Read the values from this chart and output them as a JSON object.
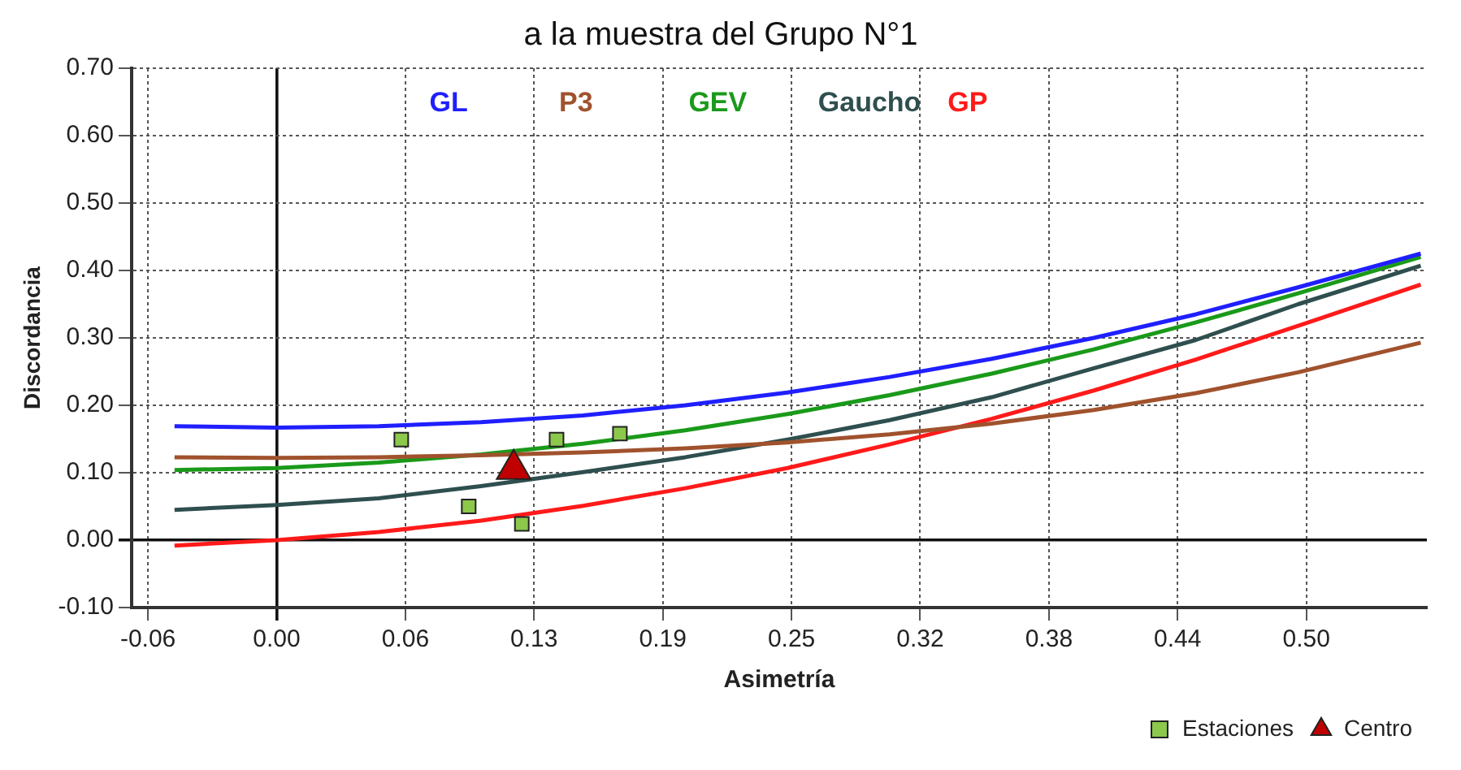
{
  "chart_data": {
    "type": "line",
    "title": "a la muestra del Grupo N°1",
    "xlabel": "Asimetría",
    "ylabel": "Discordancia",
    "xlim": [
      -0.071,
      0.563
    ],
    "ylim": [
      -0.1,
      0.7
    ],
    "xticks": [
      {
        "value": -0.063,
        "label": "-0.06"
      },
      {
        "value": 0,
        "label": "0.00"
      },
      {
        "value": 0.063,
        "label": "0.06"
      },
      {
        "value": 0.126,
        "label": "0.13"
      },
      {
        "value": 0.189,
        "label": "0.19"
      },
      {
        "value": 0.252,
        "label": "0.25"
      },
      {
        "value": 0.315,
        "label": "0.32"
      },
      {
        "value": 0.378,
        "label": "0.38"
      },
      {
        "value": 0.441,
        "label": "0.44"
      },
      {
        "value": 0.504,
        "label": "0.50"
      }
    ],
    "yticks": [
      {
        "value": -0.1,
        "label": "-0.10"
      },
      {
        "value": 0,
        "label": "0.00"
      },
      {
        "value": 0.1,
        "label": "0.10"
      },
      {
        "value": 0.2,
        "label": "0.20"
      },
      {
        "value": 0.3,
        "label": "0.30"
      },
      {
        "value": 0.4,
        "label": "0.40"
      },
      {
        "value": 0.5,
        "label": "0.50"
      },
      {
        "value": 0.6,
        "label": "0.60"
      },
      {
        "value": 0.7,
        "label": "0.70"
      }
    ],
    "grid": true,
    "legend": "bottom right",
    "line_style": "solid",
    "x": [
      -0.05,
      0,
      0.05,
      0.1,
      0.15,
      0.2,
      0.25,
      0.3,
      0.35,
      0.4,
      0.45,
      0.5,
      0.56
    ],
    "series": [
      {
        "name": "GL",
        "type": "line",
        "marker": "none",
        "color": "#1f1fff",
        "values": [
          0.169,
          0.167,
          0.169,
          0.175,
          0.185,
          0.2,
          0.219,
          0.242,
          0.269,
          0.3,
          0.335,
          0.375,
          0.425
        ]
      },
      {
        "name": "P3",
        "type": "line",
        "marker": "none",
        "color": "#a0522d",
        "values": [
          0.123,
          0.122,
          0.123,
          0.126,
          0.13,
          0.136,
          0.145,
          0.157,
          0.173,
          0.193,
          0.218,
          0.249,
          0.293
        ]
      },
      {
        "name": "GEV",
        "type": "line",
        "marker": "none",
        "color": "#1a9a1a",
        "values": [
          0.104,
          0.107,
          0.115,
          0.127,
          0.143,
          0.163,
          0.187,
          0.215,
          0.247,
          0.283,
          0.323,
          0.366,
          0.42
        ]
      },
      {
        "name": "Gaucho",
        "type": "line",
        "marker": "none",
        "color": "#2f4f4f",
        "values": [
          0.045,
          0.052,
          0.062,
          0.08,
          0.101,
          0.123,
          0.149,
          0.178,
          0.212,
          0.255,
          0.297,
          0.35,
          0.407
        ]
      },
      {
        "name": "GP",
        "type": "line",
        "marker": "none",
        "color": "#ff1a1a",
        "values": [
          -0.008,
          0,
          0.012,
          0.029,
          0.051,
          0.077,
          0.107,
          0.142,
          0.18,
          0.222,
          0.268,
          0.318,
          0.379
        ]
      },
      {
        "name": "Estaciones",
        "type": "scatter",
        "marker": "square",
        "color": "#8cc84b",
        "x": [
          0.061,
          0.094,
          0.12,
          0.137,
          0.168
        ],
        "values": [
          0.149,
          0.05,
          0.024,
          0.149,
          0.158
        ]
      },
      {
        "name": "Centro",
        "type": "scatter",
        "marker": "triangle",
        "color": "#c00000",
        "x": [
          0.116
        ],
        "values": [
          0.105
        ]
      }
    ]
  }
}
